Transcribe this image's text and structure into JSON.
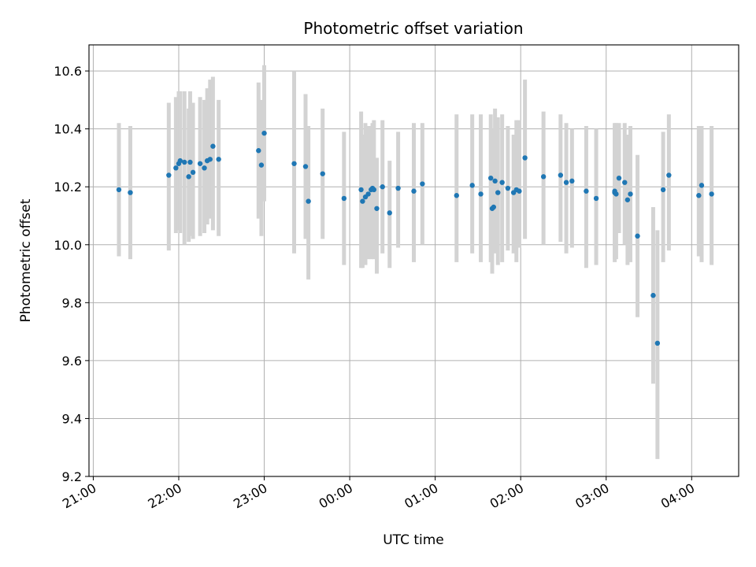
{
  "chart_data": {
    "type": "scatter",
    "title": "Photometric offset variation",
    "xlabel": "UTC time",
    "ylabel": "Photometric offset",
    "x_range_hours": [
      20.95,
      28.55
    ],
    "ylim": [
      9.2,
      10.69
    ],
    "y_ticks": [
      9.2,
      9.4,
      9.6,
      9.8,
      10.0,
      10.2,
      10.4,
      10.6
    ],
    "y_tick_labels": [
      "9.2",
      "9.4",
      "9.6",
      "9.8",
      "10.0",
      "10.2",
      "10.4",
      "10.6"
    ],
    "x_ticks": [
      "21:00",
      "22:00",
      "23:00",
      "00:00",
      "01:00",
      "02:00",
      "03:00",
      "04:00"
    ],
    "grid": true,
    "point_color": "#1f77b4",
    "errorbar_color": "#d3d3d3",
    "series": [
      {
        "x": [
          "21:18",
          "21:26",
          "21:53",
          "21:58",
          "22:00",
          "22:01",
          "22:04",
          "22:07",
          "22:08",
          "22:10",
          "22:15",
          "22:18",
          "22:20",
          "22:22",
          "22:24",
          "22:28",
          "22:56",
          "22:58",
          "23:00",
          "23:21",
          "23:29",
          "23:31",
          "23:41",
          "23:56",
          "00:08",
          "00:09",
          "00:11",
          "00:13",
          "00:15",
          "00:16",
          "00:17",
          "00:19",
          "00:23",
          "00:28",
          "00:34",
          "00:45",
          "00:51",
          "01:15",
          "01:26",
          "01:32",
          "01:39",
          "01:40",
          "01:41",
          "01:42",
          "01:44",
          "01:47",
          "01:51",
          "01:55",
          "01:57",
          "01:59",
          "02:03",
          "02:16",
          "02:28",
          "02:32",
          "02:36",
          "02:46",
          "02:53",
          "03:06",
          "03:06",
          "03:07",
          "03:09",
          "03:13",
          "03:15",
          "03:17",
          "03:22",
          "03:33",
          "03:36",
          "03:40",
          "03:44",
          "04:05",
          "04:07",
          "04:14"
        ],
        "y": [
          10.19,
          10.18,
          10.24,
          10.265,
          10.28,
          10.29,
          10.285,
          10.235,
          10.285,
          10.25,
          10.28,
          10.265,
          10.29,
          10.295,
          10.34,
          10.295,
          10.325,
          10.275,
          10.385,
          10.28,
          10.27,
          10.15,
          10.245,
          10.16,
          10.19,
          10.15,
          10.165,
          10.175,
          10.19,
          10.195,
          10.19,
          10.125,
          10.2,
          10.11,
          10.195,
          10.185,
          10.21,
          10.17,
          10.205,
          10.175,
          10.23,
          10.125,
          10.13,
          10.22,
          10.18,
          10.215,
          10.195,
          10.18,
          10.19,
          10.185,
          10.3,
          10.235,
          10.24,
          10.215,
          10.22,
          10.185,
          10.16,
          10.185,
          10.18,
          10.175,
          10.23,
          10.215,
          10.155,
          10.175,
          10.03,
          9.825,
          9.66,
          10.19,
          10.24,
          10.17,
          10.205,
          10.175
        ],
        "yerr_low": [
          9.96,
          9.95,
          9.98,
          10.04,
          10.05,
          10.04,
          10.0,
          10.01,
          10.03,
          10.02,
          10.03,
          10.04,
          10.07,
          10.09,
          10.05,
          10.03,
          10.09,
          10.03,
          10.15,
          9.97,
          10.02,
          9.88,
          10.02,
          9.93,
          9.92,
          9.92,
          9.93,
          9.95,
          9.95,
          9.97,
          9.95,
          9.9,
          9.97,
          9.92,
          9.99,
          9.94,
          10.0,
          9.94,
          9.97,
          9.94,
          9.94,
          9.9,
          9.98,
          9.97,
          9.93,
          9.94,
          9.98,
          9.97,
          9.94,
          9.99,
          10.02,
          10.0,
          10.01,
          9.97,
          9.99,
          9.92,
          9.93,
          9.95,
          9.94,
          9.95,
          10.04,
          10.0,
          9.93,
          9.94,
          9.75,
          9.52,
          9.26,
          9.94,
          9.98,
          9.96,
          9.94,
          9.93
        ],
        "yerr_high": [
          10.42,
          10.41,
          10.49,
          10.51,
          10.53,
          10.53,
          10.53,
          10.47,
          10.53,
          10.49,
          10.51,
          10.5,
          10.54,
          10.57,
          10.58,
          10.5,
          10.56,
          10.5,
          10.62,
          10.6,
          10.52,
          10.41,
          10.47,
          10.39,
          10.46,
          10.38,
          10.42,
          10.41,
          10.41,
          10.42,
          10.43,
          10.3,
          10.43,
          10.29,
          10.39,
          10.42,
          10.42,
          10.45,
          10.45,
          10.45,
          10.45,
          10.38,
          10.4,
          10.47,
          10.44,
          10.45,
          10.41,
          10.38,
          10.43,
          10.43,
          10.57,
          10.46,
          10.45,
          10.42,
          10.4,
          10.41,
          10.4,
          10.42,
          10.41,
          10.42,
          10.42,
          10.42,
          10.38,
          10.41,
          10.31,
          10.13,
          10.05,
          10.39,
          10.45,
          10.41,
          10.41,
          10.41
        ]
      }
    ]
  }
}
